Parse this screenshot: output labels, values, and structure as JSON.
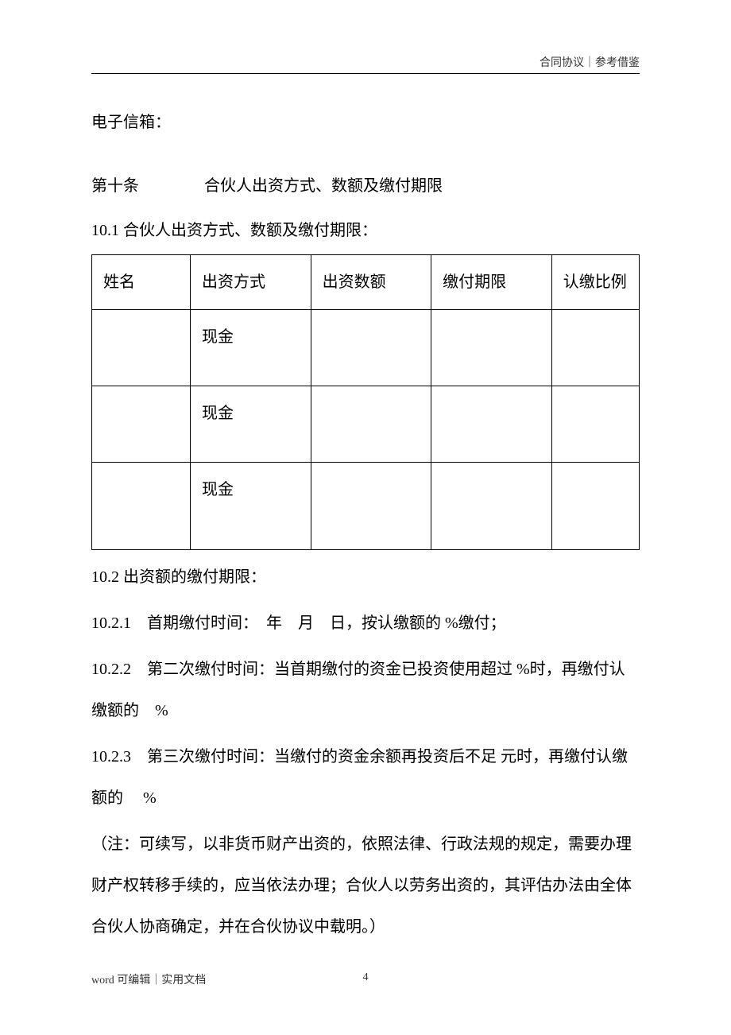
{
  "header": {
    "text": "合同协议｜参考借鉴"
  },
  "content": {
    "email_label": "电子信箱：",
    "article10": {
      "number": "第十条",
      "title": "合伙人出资方式、数额及缴付期限"
    },
    "section_10_1": "10.1 合伙人出资方式、数额及缴付期限：",
    "table": {
      "headers": {
        "name": "姓名",
        "method": "出资方式",
        "amount": "出资数额",
        "deadline": "缴付期限",
        "ratio": "认缴比例"
      },
      "rows": [
        {
          "name": "",
          "method": "现金",
          "amount": "",
          "deadline": "",
          "ratio": ""
        },
        {
          "name": "",
          "method": "现金",
          "amount": "",
          "deadline": "",
          "ratio": ""
        },
        {
          "name": "",
          "method": "现金",
          "amount": "",
          "deadline": "",
          "ratio": ""
        }
      ]
    },
    "section_10_2": "10.2 出资额的缴付期限：",
    "section_10_2_1": "10.2.1　首期缴付时间：　年　月　日，按认缴额的 %缴付；",
    "section_10_2_2": "10.2.2　第二次缴付时间：当首期缴付的资金已投资使用超过 %时，再缴付认缴额的　%",
    "section_10_2_3": "10.2.3　第三次缴付时间：当缴付的资金余额再投资后不足 元时，再缴付认缴额的　 %",
    "note": "（注：可续写，以非货币财产出资的，依照法律、行政法规的规定，需要办理财产权转移手续的，应当依法办理；合伙人以劳务出资的，其评估办法由全体合伙人协商确定，并在合伙协议中载明。）"
  },
  "footer": {
    "left": "word 可编辑｜实用文档",
    "page": "4"
  }
}
